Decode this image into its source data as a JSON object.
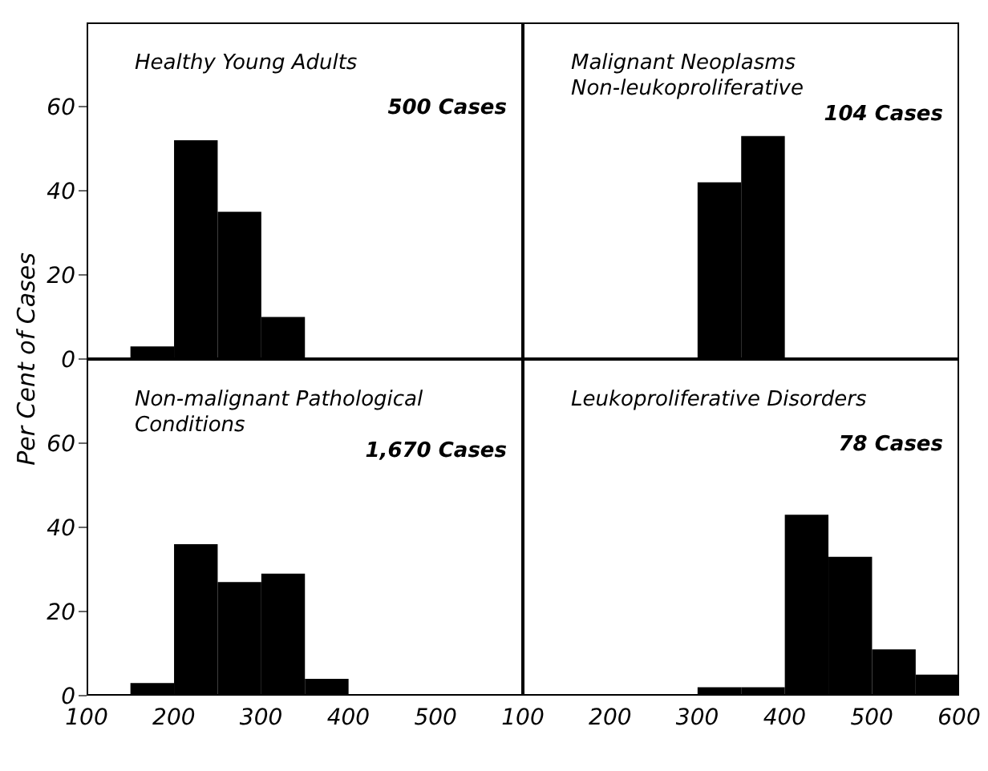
{
  "chart_data": [
    {
      "type": "histogram",
      "title": "Healthy Young Adults",
      "subtitle": "500 Cases",
      "ylabel": "Per Cent of Cases",
      "bins": [
        150,
        200,
        250,
        300,
        350
      ],
      "values": [
        3,
        52,
        35,
        10
      ],
      "color": "#000000",
      "xlim": [
        100,
        600
      ],
      "xticks": [
        100,
        200,
        300,
        400,
        500
      ],
      "ylim": [
        0,
        80
      ],
      "yticks": [
        0,
        20,
        40,
        60
      ],
      "tick_labels": "y"
    },
    {
      "type": "histogram",
      "title": "Malignant Neoplasms\nNon-leukoproliferative",
      "subtitle": "104 Cases",
      "bins": [
        300,
        350,
        400
      ],
      "values": [
        42,
        53
      ],
      "color": "#000000",
      "xlim": [
        100,
        600
      ],
      "xticks": [
        100,
        200,
        300,
        400,
        500,
        600
      ],
      "ylim": [
        0,
        80
      ],
      "yticks": [
        0,
        20,
        40,
        60
      ],
      "tick_labels": false
    },
    {
      "type": "histogram",
      "title": "Non-malignant Pathological\nConditions",
      "subtitle": "1,670 Cases",
      "bins": [
        150,
        200,
        250,
        300,
        350,
        400
      ],
      "values": [
        3,
        36,
        27,
        29,
        4
      ],
      "color": "#000000",
      "xlim": [
        100,
        600
      ],
      "xticks": [
        100,
        200,
        300,
        400,
        500
      ],
      "ylim": [
        0,
        80
      ],
      "yticks": [
        0,
        20,
        40,
        60
      ]
    },
    {
      "type": "histogram",
      "title": "Leukoproliferative Disorders",
      "subtitle": "78 Cases",
      "bins": [
        300,
        350,
        400,
        450,
        500,
        550,
        600
      ],
      "values": [
        2,
        2,
        43,
        33,
        11,
        5
      ],
      "color": "#000000",
      "xlim": [
        100,
        600
      ],
      "xticks": [
        100,
        200,
        300,
        400,
        500,
        600
      ],
      "ylim": [
        0,
        80
      ],
      "yticks": [
        0,
        20,
        40,
        60
      ],
      "tick_labels": "x"
    }
  ]
}
